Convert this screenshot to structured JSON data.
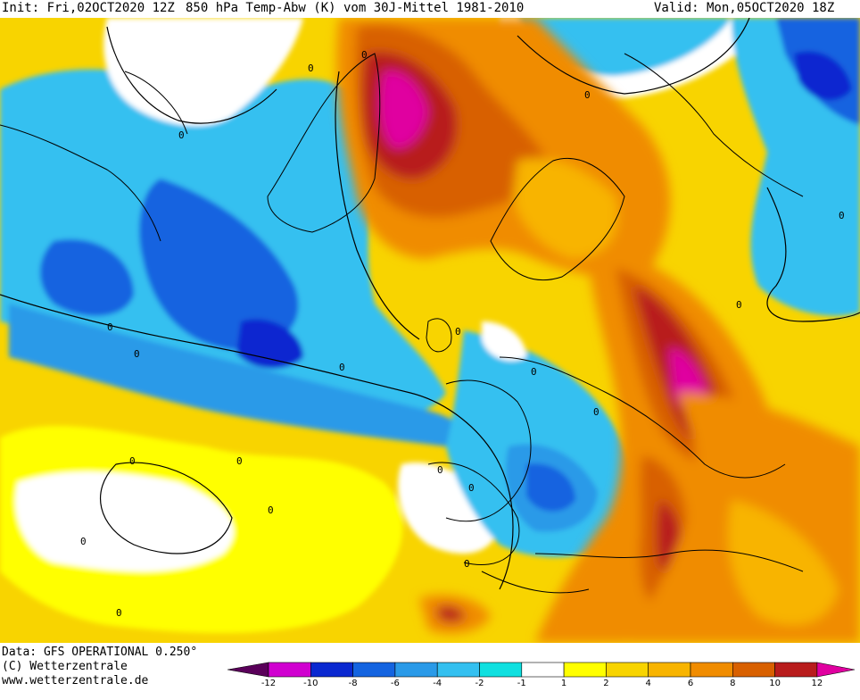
{
  "header": {
    "init": "Init: Fri,02OCT2020 12Z",
    "description": "850 hPa Temp-Abw (K) vom 30J-Mittel 1981-2010",
    "valid": "Valid: Mon,05OCT2020 18Z"
  },
  "footer": {
    "data_source": "Data: GFS OPERATIONAL 0.250°",
    "copyright": "(C) Wetterzentrale",
    "url": "www.wetterzentrale.de"
  },
  "legend": {
    "colors": [
      "#5a005a",
      "#d000d0",
      "#0a28d0",
      "#1464e0",
      "#2a9ae8",
      "#34c0f0",
      "#10e0e0",
      "#ffffff",
      "#ffff00",
      "#f8d400",
      "#f8b400",
      "#f08c00",
      "#d86000",
      "#b81c1c",
      "#e000a0"
    ],
    "ticks": [
      "-12",
      "-10",
      "-8",
      "-6",
      "-4",
      "-2",
      "-1",
      "1",
      "2",
      "4",
      "6",
      "8",
      "10",
      "12"
    ]
  },
  "map": {
    "contour_labels": [
      "0",
      "0",
      "0",
      "0",
      "0",
      "0",
      "0",
      "0",
      "0",
      "0",
      "0",
      "0",
      "0",
      "0",
      "0",
      "0",
      "0",
      "0",
      "0",
      "0"
    ]
  }
}
